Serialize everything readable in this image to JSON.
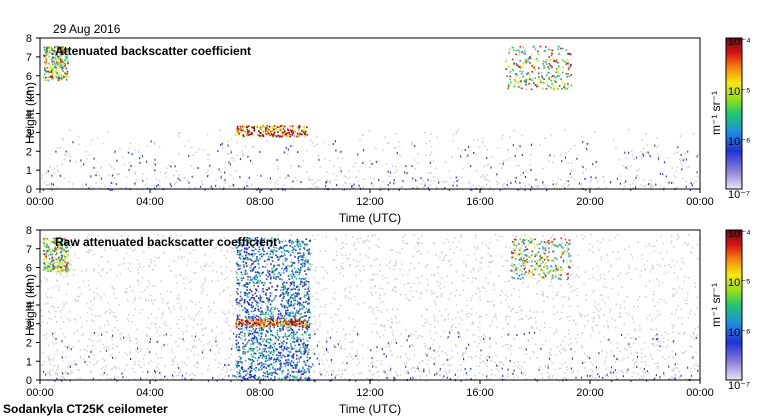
{
  "date": "29 Aug 2016",
  "footer": "Sodankyla CT25K ceilometer",
  "chart_data": [
    {
      "type": "heatmap",
      "title": "Attenuated backscatter coefficient",
      "xlabel": "Time (UTC)",
      "ylabel": "Height (km)",
      "x_ticks": [
        "00:00",
        "04:00",
        "08:00",
        "12:00",
        "16:00",
        "20:00",
        "00:00"
      ],
      "y_ticks": [
        "0",
        "1",
        "2",
        "3",
        "4",
        "5",
        "6",
        "7",
        "8"
      ],
      "ylim": [
        0,
        8
      ],
      "colorbar": {
        "label": "m⁻¹ sr⁻¹",
        "scale": "log",
        "ticks": [
          "10⁻⁴",
          "10⁻⁵",
          "10⁻⁶",
          "10⁻⁷"
        ],
        "range": [
          1e-07,
          0.0001
        ]
      },
      "features": [
        {
          "name": "early cloud",
          "t_start": 0.1,
          "t_end": 1.0,
          "h_bottom": 5.8,
          "h_top": 7.6,
          "level": "high"
        },
        {
          "name": "cloud layer",
          "t_start": 7.1,
          "t_end": 9.7,
          "h_bottom": 2.8,
          "h_top": 3.4,
          "level": "very high"
        },
        {
          "name": "late cloud",
          "t_start": 16.9,
          "t_end": 19.3,
          "h_bottom": 5.3,
          "h_top": 7.6,
          "level": "high"
        }
      ]
    },
    {
      "type": "heatmap",
      "title": "Raw attenuated backscatter coefficient",
      "xlabel": "Time (UTC)",
      "ylabel": "Height (km)",
      "x_ticks": [
        "00:00",
        "04:00",
        "08:00",
        "12:00",
        "16:00",
        "20:00",
        "00:00"
      ],
      "y_ticks": [
        "0",
        "1",
        "2",
        "3",
        "4",
        "5",
        "6",
        "7",
        "8"
      ],
      "ylim": [
        0,
        8
      ],
      "colorbar": {
        "label": "m⁻¹ sr⁻¹",
        "scale": "log",
        "ticks": [
          "10⁻⁴",
          "10⁻⁵",
          "10⁻⁶",
          "10⁻⁷"
        ],
        "range": [
          1e-07,
          0.0001
        ]
      },
      "features": [
        {
          "name": "early cloud",
          "t_start": 0.1,
          "t_end": 1.0,
          "h_bottom": 5.8,
          "h_top": 7.6,
          "level": "high"
        },
        {
          "name": "noisy period",
          "t_start": 7.1,
          "t_end": 9.8,
          "h_bottom": 0,
          "h_top": 7.6,
          "level": "medium"
        },
        {
          "name": "cloud layer",
          "t_start": 7.1,
          "t_end": 9.7,
          "h_bottom": 2.9,
          "h_top": 3.3,
          "level": "very high"
        },
        {
          "name": "late cloud",
          "t_start": 17.1,
          "t_end": 19.3,
          "h_bottom": 5.4,
          "h_top": 7.6,
          "level": "high"
        }
      ]
    }
  ]
}
